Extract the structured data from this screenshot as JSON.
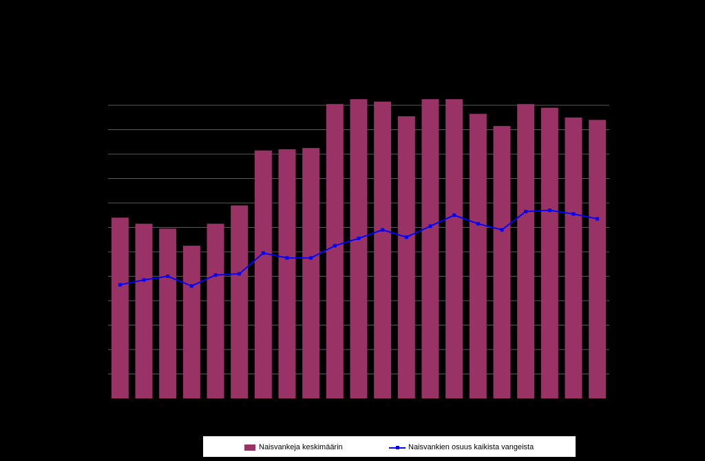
{
  "chart_data": {
    "type": "bar",
    "categories": [
      "",
      "",
      "",
      "",
      "",
      "",
      "",
      "",
      "",
      "",
      "",
      "",
      "",
      "",
      "",
      "",
      "",
      "",
      "",
      "",
      ""
    ],
    "series": [
      {
        "name": "Naisvankeja keskimäärin",
        "kind": "bar",
        "color": "#993366",
        "values": [
          74,
          71.5,
          69.5,
          62.5,
          71.5,
          79,
          101.5,
          102,
          102.5,
          120.5,
          122.5,
          121.5,
          115.5,
          122.5,
          122.5,
          116.5,
          111.5,
          120.5,
          119,
          115,
          114
        ]
      },
      {
        "name": "Naisvankien osuus kaikista vangeista",
        "kind": "line",
        "color": "#0000ff",
        "values": [
          46.5,
          48.5,
          50,
          46,
          50.5,
          51,
          59.5,
          57.5,
          57.5,
          62.5,
          65.5,
          69,
          66,
          70.5,
          75,
          71.5,
          69,
          76.5,
          77,
          75.5,
          73.5
        ]
      }
    ],
    "ylim": [
      0,
      120
    ],
    "grid": true,
    "legend": "bottom",
    "background": "#000000"
  }
}
